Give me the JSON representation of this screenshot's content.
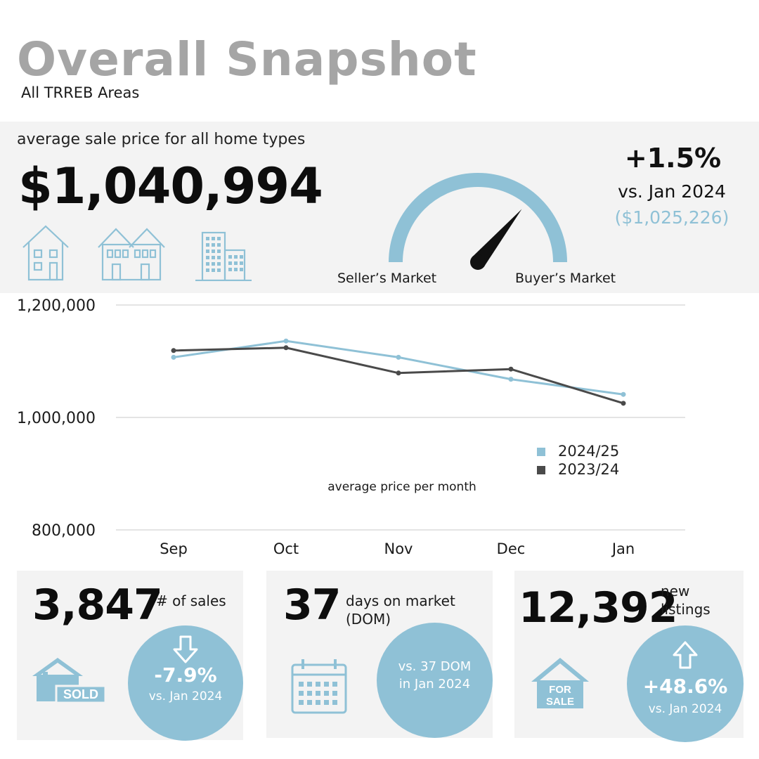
{
  "header": {
    "title": "Overall Snapshot",
    "subtitle": "All TRREB Areas"
  },
  "price": {
    "label": "average sale price for all home types",
    "value": "$1,040,994",
    "change": "+1.5%",
    "vs": "vs. Jan 2024",
    "prev_value": "($1,025,226)"
  },
  "home_type_icons": [
    "detached-house-icon",
    "semi-detached-house-icon",
    "condo-building-icon"
  ],
  "gauge": {
    "left_label": "Seller’s Market",
    "right_label": "Buyer’s Market",
    "needle_level": 0.72
  },
  "colors": {
    "accent": "#8fc1d6",
    "series_current": "#8fc1d6",
    "series_previous": "#4a4a4a",
    "panel": "#f3f3f3",
    "title_gray": "#a5a5a5"
  },
  "chart_data": {
    "type": "line",
    "categories": [
      "Sep",
      "Oct",
      "Nov",
      "Dec",
      "Jan"
    ],
    "ylim": [
      800000,
      1200000
    ],
    "yticks": [
      "1,200,000",
      "1,000,000",
      "800,000"
    ],
    "xlabel": "average price per month",
    "grid": true,
    "legend_position": "bottom-right",
    "series": [
      {
        "name": "2024/25",
        "color": "#8fc1d6",
        "values": [
          1107000,
          1136000,
          1107000,
          1068000,
          1040994
        ]
      },
      {
        "name": "2023/24",
        "color": "#4a4a4a",
        "values": [
          1119000,
          1124000,
          1079000,
          1086000,
          1025226
        ]
      }
    ]
  },
  "cards": {
    "sales": {
      "value": "3,847",
      "label": "# of sales",
      "badge": "SOLD",
      "change": "-7.9%",
      "vs": "vs. Jan 2024",
      "direction": "down"
    },
    "dom": {
      "value": "37",
      "label": "days on market (DOM)",
      "vs_line1": "vs. 37 DOM",
      "vs_line2": "in Jan 2024"
    },
    "listings": {
      "value": "12,392",
      "label": "new listings",
      "badge": "FOR SALE",
      "change": "+48.6%",
      "vs": "vs. Jan 2024",
      "direction": "up"
    }
  }
}
